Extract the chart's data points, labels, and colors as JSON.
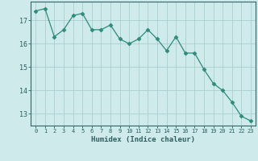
{
  "x": [
    0,
    1,
    2,
    3,
    4,
    5,
    6,
    7,
    8,
    9,
    10,
    11,
    12,
    13,
    14,
    15,
    16,
    17,
    18,
    19,
    20,
    21,
    22,
    23
  ],
  "y": [
    17.4,
    17.5,
    16.3,
    16.6,
    17.2,
    17.3,
    16.6,
    16.6,
    16.8,
    16.2,
    16.0,
    16.2,
    16.6,
    16.2,
    15.7,
    16.3,
    15.6,
    15.6,
    14.9,
    14.3,
    14.0,
    13.5,
    12.9,
    12.7
  ],
  "line_color": "#2e8b7a",
  "marker": "D",
  "marker_size": 2.5,
  "bg_color": "#ceeaea",
  "grid_color": "#aacece",
  "axis_color": "#336666",
  "xlabel": "Humidex (Indice chaleur)",
  "ylim": [
    12.5,
    17.8
  ],
  "xlim": [
    -0.5,
    23.5
  ],
  "yticks": [
    13,
    14,
    15,
    16,
    17
  ],
  "xticks": [
    0,
    1,
    2,
    3,
    4,
    5,
    6,
    7,
    8,
    9,
    10,
    11,
    12,
    13,
    14,
    15,
    16,
    17,
    18,
    19,
    20,
    21,
    22,
    23
  ],
  "font_color": "#2e5f5f"
}
